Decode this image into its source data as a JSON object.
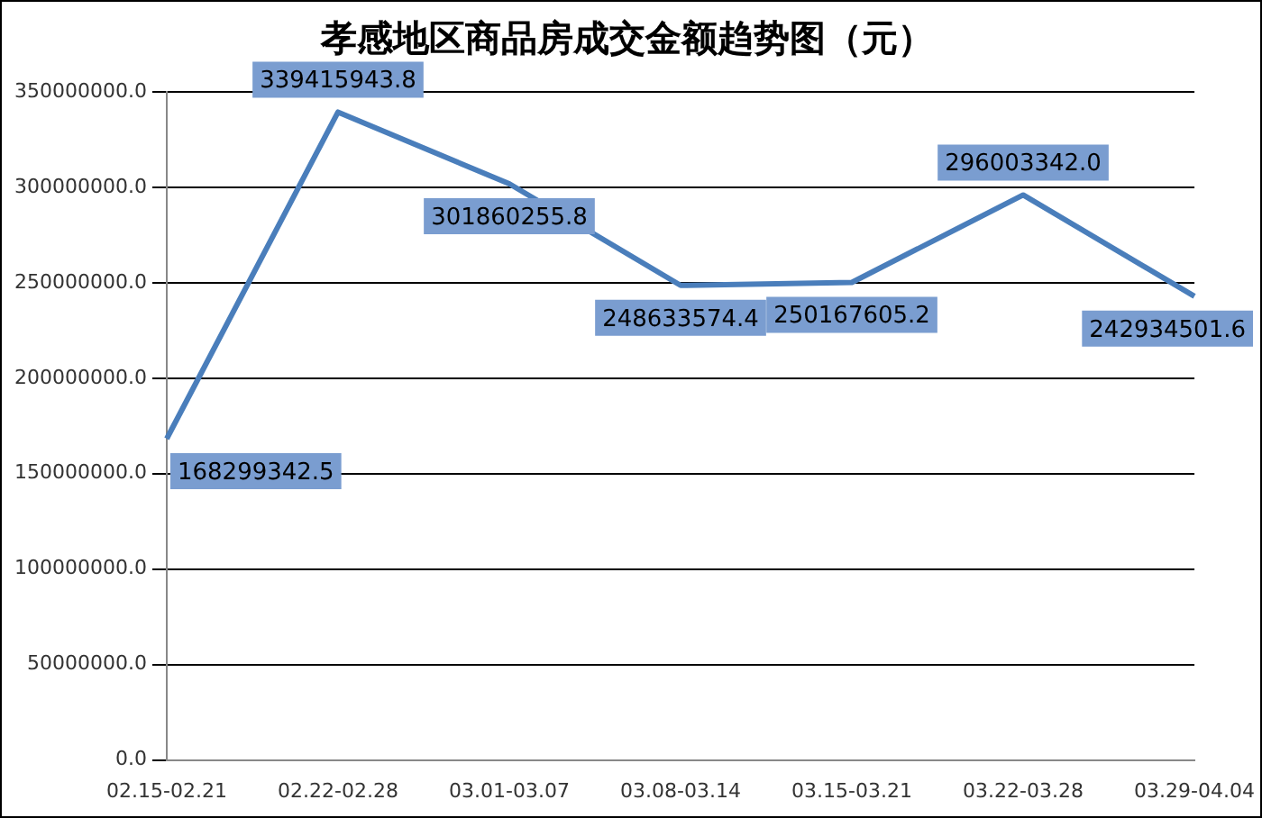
{
  "chart_data": {
    "type": "line",
    "title": "孝感地区商品房成交金额趋势图（元）",
    "categories": [
      "02.15-02.21",
      "02.22-02.28",
      "03.01-03.07",
      "03.08-03.14",
      "03.15-03.21",
      "03.22-03.28",
      "03.29-04.04"
    ],
    "series": [
      {
        "color": "#4a7ebb",
        "values": [
          168299342.5,
          339415943.8,
          301860255.8,
          248633574.4,
          250167605.2,
          296003342.0,
          242934501.6
        ],
        "value_labels": [
          "168299342.5",
          "339415943.8",
          "301860255.8",
          "248633574.4",
          "250167605.2",
          "296003342.0",
          "242934501.6"
        ]
      }
    ],
    "ylim": [
      0,
      350000000
    ],
    "yticks": [
      {
        "value": 0,
        "label": "0.0"
      },
      {
        "value": 50000000,
        "label": "50000000.0"
      },
      {
        "value": 100000000,
        "label": "100000000.0"
      },
      {
        "value": 150000000,
        "label": "150000000.0"
      },
      {
        "value": 200000000,
        "label": "200000000.0"
      },
      {
        "value": 250000000,
        "label": "250000000.0"
      },
      {
        "value": 300000000,
        "label": "300000000.0"
      },
      {
        "value": 350000000,
        "label": "350000000.0"
      }
    ],
    "grid": "y",
    "legend": false,
    "marker": "none",
    "line_style": "solid"
  }
}
